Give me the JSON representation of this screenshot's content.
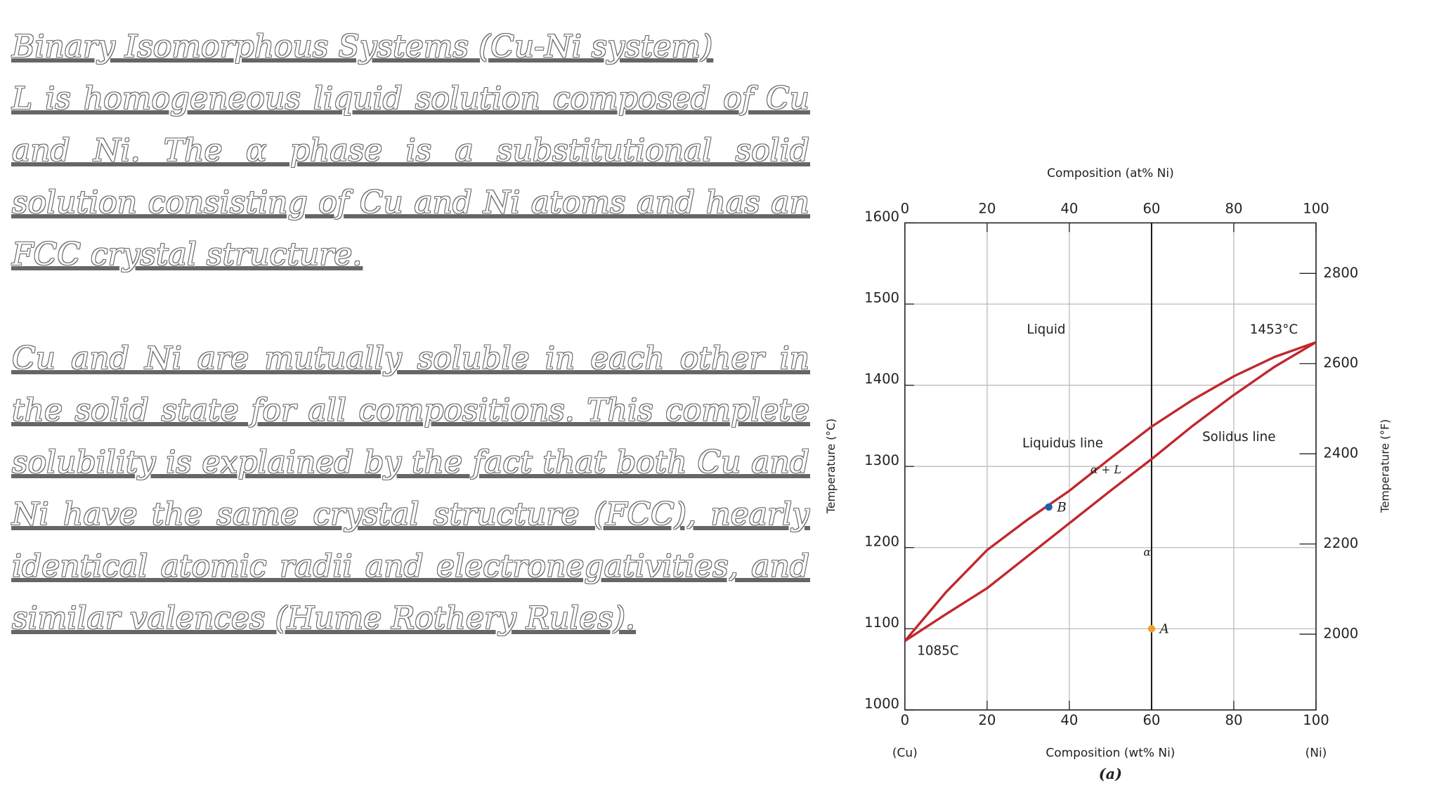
{
  "slide": {
    "title": "Binary Isomorphous Systems (Cu-Ni system)",
    "paragraphs": [
      "L is homogeneous liquid solution composed of Cu and Ni. The α phase is a substitutional solid solution consisting of Cu and Ni atoms and has an FCC crystal structure.",
      "Cu and Ni are mutually soluble in each other in the solid state for all compositions. This complete solubility is explained by the fact that both Cu and Ni have the same crystal structure (FCC), nearly identical atomic radii and electronegativities, and similar valences (Hume Rothery Rules)."
    ]
  },
  "chart_data": {
    "type": "line",
    "x_label": "Composition (wt% Ni)",
    "x2_label": "Composition (at% Ni)",
    "y_label": "Temperature (°C)",
    "y2_label": "Temperature (°F)",
    "x_left_label": "(Cu)",
    "x_right_label": "(Ni)",
    "caption": "(a)",
    "x": [
      0,
      10,
      20,
      30,
      40,
      50,
      60,
      70,
      80,
      90,
      100
    ],
    "series": [
      {
        "name": "Liquidus line",
        "color": "#c0282d",
        "values": [
          1085,
          1145,
          1197,
          1235,
          1270,
          1310,
          1349,
          1382,
          1411,
          1435,
          1453
        ]
      },
      {
        "name": "Solidus line",
        "color": "#c0282d",
        "values": [
          1085,
          1118,
          1150,
          1190,
          1230,
          1270,
          1309,
          1350,
          1388,
          1423,
          1453
        ]
      }
    ],
    "points": [
      {
        "label": "A",
        "x": 60,
        "y": 1100,
        "color": "#f0a030"
      },
      {
        "label": "B",
        "x": 35,
        "y": 1250,
        "color": "#1f5fa8"
      }
    ],
    "annotations": [
      "Liquid",
      "1453°C",
      "α + L",
      "α",
      "1085C"
    ],
    "vertical_line_x": 60,
    "xlim": [
      0,
      100
    ],
    "xticks": [
      0,
      20,
      40,
      60,
      80,
      100
    ],
    "x2lim": [
      0,
      100
    ],
    "x2ticks": [
      0,
      20,
      40,
      60,
      80,
      100
    ],
    "ylim": [
      1000,
      1600
    ],
    "yticks": [
      1000,
      1100,
      1200,
      1300,
      1400,
      1500,
      1600
    ],
    "y2lim": [
      1832,
      2912
    ],
    "y2ticks": [
      2000,
      2200,
      2400,
      2600,
      2800
    ],
    "grid": true
  }
}
